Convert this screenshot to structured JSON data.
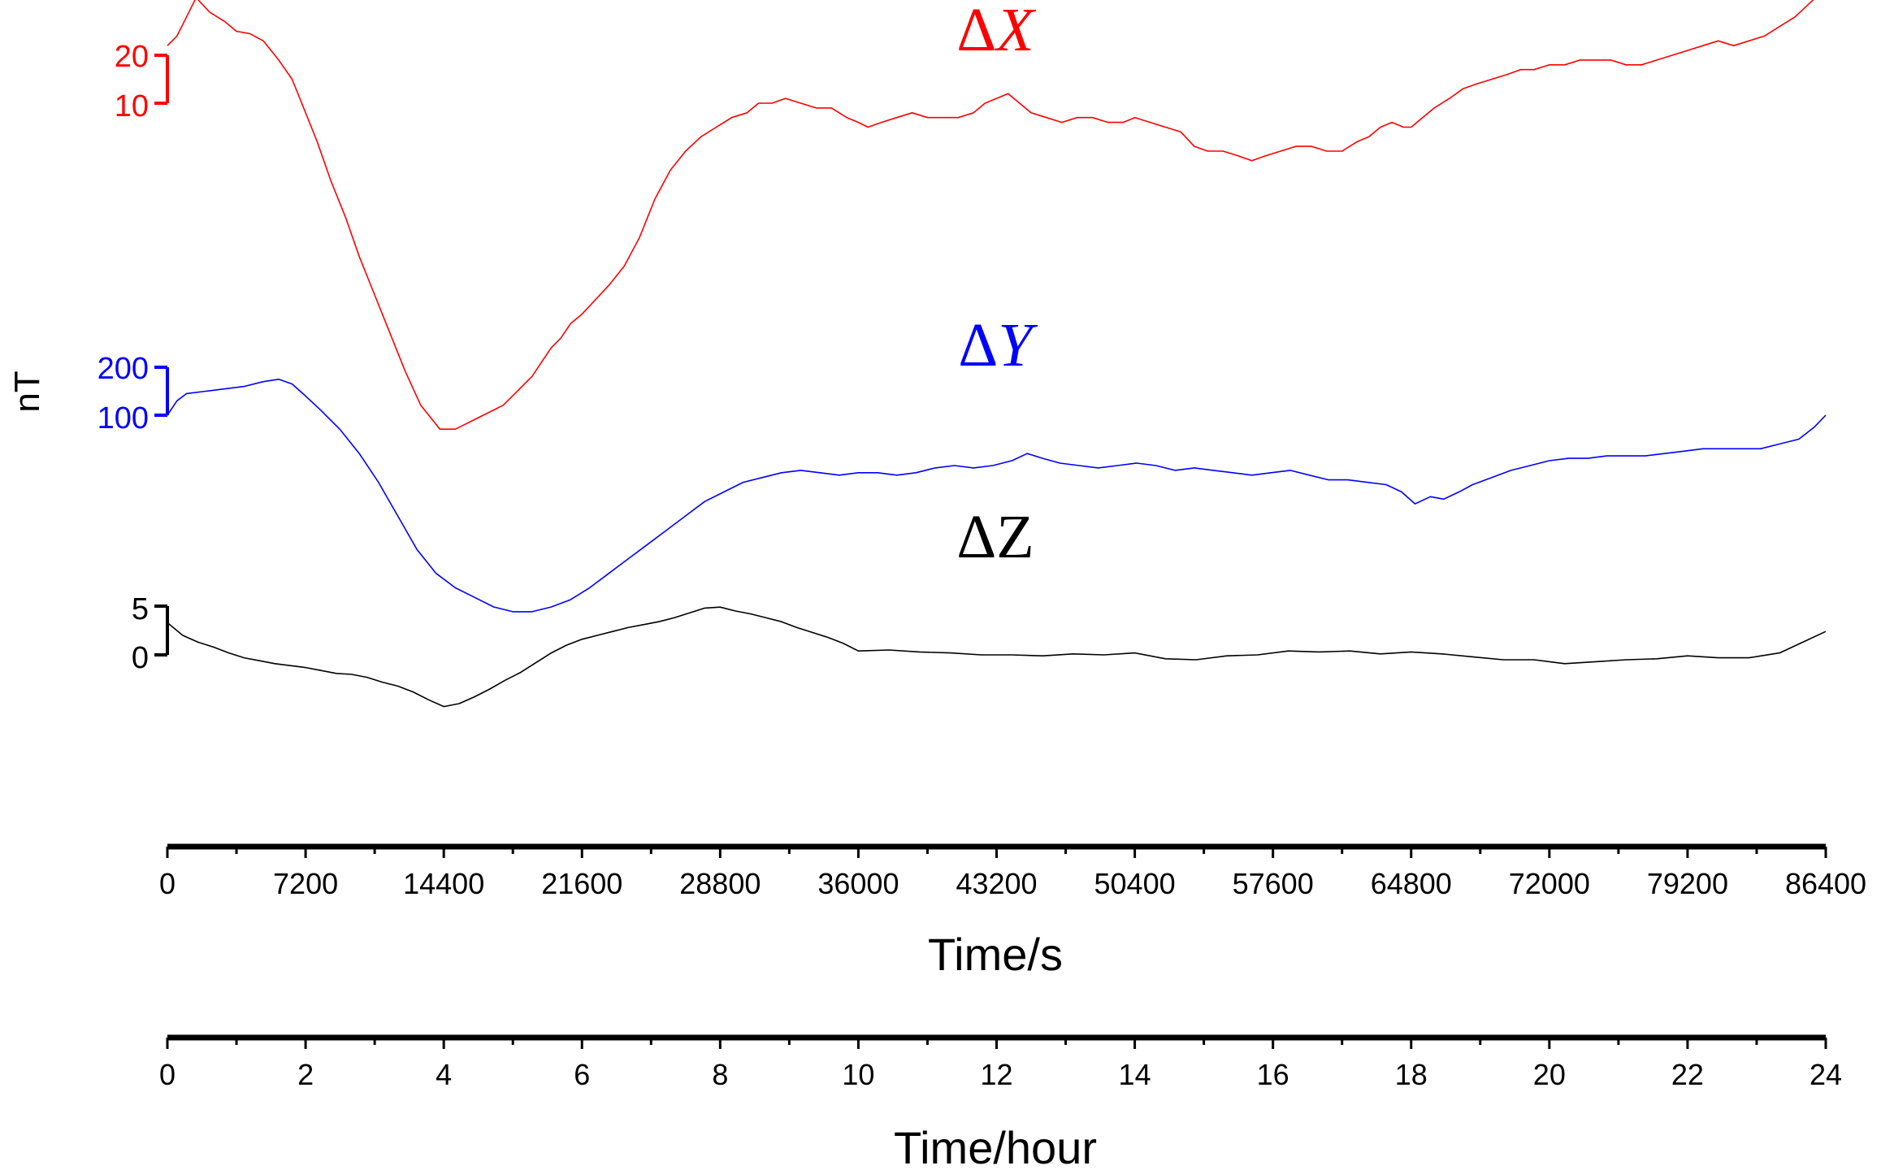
{
  "chart_data": {
    "type": "line",
    "ylabel": "nT",
    "x_unit_label": "Time/s",
    "x_hour_label": "Time/hour",
    "xlim": [
      0,
      86400
    ],
    "x_ticks_seconds": [
      "0",
      "7200",
      "14400",
      "21600",
      "28800",
      "36000",
      "43200",
      "50400",
      "57600",
      "64800",
      "72000",
      "79200",
      "86400"
    ],
    "x_ticks_hours": [
      "0",
      "2",
      "4",
      "6",
      "8",
      "10",
      "12",
      "14",
      "16",
      "18",
      "20",
      "22",
      "24"
    ],
    "grid": false,
    "series": [
      {
        "name": "X",
        "delta_symbol": "Δ",
        "color": "#ff0000",
        "scale_ticks": [
          "20",
          "10"
        ],
        "scale_values": [
          20,
          10
        ],
        "x": [
          0,
          500,
          1000,
          1500,
          2200,
          3000,
          3600,
          4300,
          5000,
          5800,
          6500,
          7200,
          7800,
          8500,
          9300,
          10000,
          10800,
          11600,
          12400,
          13200,
          13800,
          14200,
          14600,
          15000,
          15500,
          16000,
          16500,
          17000,
          17500,
          18000,
          18500,
          19000,
          19500,
          20000,
          20500,
          21000,
          21600,
          22300,
          23000,
          23800,
          24600,
          25400,
          26200,
          27000,
          27800,
          28600,
          29400,
          30200,
          30800,
          31500,
          32200,
          33000,
          33800,
          34600,
          35400,
          36000,
          36500,
          37200,
          38000,
          38800,
          39600,
          40400,
          41200,
          42000,
          42600,
          43200,
          43800,
          44400,
          45000,
          45800,
          46600,
          47400,
          48200,
          49000,
          49800,
          50400,
          51200,
          52000,
          52800,
          53500,
          54200,
          55000,
          55800,
          56500,
          57200,
          58000,
          58800,
          59600,
          60400,
          61200,
          62000,
          62600,
          63200,
          63800,
          64400,
          64800,
          65400,
          66000,
          66800,
          67500,
          68200,
          69000,
          69800,
          70500,
          71200,
          72000,
          72800,
          73600,
          74400,
          75200,
          76000,
          76800,
          77600,
          78400,
          79200,
          80000,
          80800,
          81600,
          82400,
          83200,
          84000,
          84800,
          85600,
          86400
        ],
        "y": [
          22,
          24,
          28,
          32,
          29,
          27,
          25,
          24.5,
          23,
          19,
          15,
          8,
          2,
          -6,
          -14,
          -22,
          -30,
          -38,
          -46,
          -53,
          -56,
          -58,
          -58,
          -58,
          -57,
          -56,
          -55,
          -54,
          -53,
          -51,
          -49,
          -47,
          -44,
          -41,
          -39,
          -36,
          -34,
          -31,
          -28,
          -24,
          -18,
          -10,
          -4,
          0,
          3,
          5,
          7,
          8,
          10,
          10,
          11,
          10,
          9,
          9,
          7,
          6,
          5,
          6,
          7,
          8,
          7,
          7,
          7,
          8,
          10,
          11,
          12,
          10,
          8,
          7,
          6,
          7,
          7,
          6,
          6,
          7,
          6,
          5,
          4,
          1,
          0,
          0,
          -1,
          -2,
          -1,
          0,
          1,
          1,
          0,
          0,
          2,
          3,
          5,
          6,
          5,
          5,
          7,
          9,
          11,
          13,
          14,
          15,
          16,
          17,
          17,
          18,
          18,
          19,
          19,
          19,
          18,
          18,
          19,
          20,
          21,
          22,
          23,
          22,
          23,
          24,
          26,
          28,
          31,
          34
        ]
      },
      {
        "name": "Y",
        "delta_symbol": "Δ",
        "color": "#0000ff",
        "scale_ticks": [
          "200",
          "100"
        ],
        "scale_values": [
          200,
          100
        ],
        "x": [
          0,
          500,
          1000,
          2000,
          3000,
          4000,
          5000,
          5800,
          6500,
          7200,
          8000,
          9000,
          10000,
          11000,
          12000,
          13000,
          14000,
          15000,
          16000,
          17000,
          18000,
          19000,
          20000,
          21000,
          22000,
          23000,
          24000,
          25000,
          26000,
          27000,
          28000,
          29000,
          30000,
          31000,
          32000,
          33000,
          34000,
          35000,
          36000,
          37000,
          38000,
          39000,
          40000,
          41000,
          42000,
          43000,
          44000,
          44800,
          45600,
          46500,
          47500,
          48500,
          49500,
          50500,
          51500,
          52500,
          53500,
          54500,
          55500,
          56500,
          57500,
          58500,
          59500,
          60500,
          61500,
          62500,
          63500,
          64300,
          65000,
          65800,
          66500,
          67300,
          68000,
          69000,
          70000,
          71000,
          72000,
          73000,
          74000,
          75000,
          76000,
          77000,
          78000,
          79000,
          80000,
          81000,
          82000,
          83000,
          84000,
          85000,
          85800,
          86400
        ],
        "y": [
          100,
          130,
          145,
          150,
          155,
          160,
          170,
          175,
          165,
          140,
          110,
          70,
          20,
          -40,
          -110,
          -180,
          -230,
          -260,
          -280,
          -300,
          -310,
          -310,
          -300,
          -285,
          -260,
          -230,
          -200,
          -170,
          -140,
          -110,
          -80,
          -60,
          -40,
          -30,
          -20,
          -15,
          -20,
          -25,
          -20,
          -20,
          -25,
          -20,
          -10,
          -5,
          -10,
          -5,
          5,
          20,
          10,
          0,
          -5,
          -10,
          -5,
          0,
          -5,
          -15,
          -10,
          -15,
          -20,
          -25,
          -20,
          -15,
          -25,
          -35,
          -35,
          -40,
          -45,
          -60,
          -85,
          -70,
          -75,
          -60,
          -45,
          -30,
          -15,
          -5,
          5,
          10,
          10,
          15,
          15,
          15,
          20,
          25,
          30,
          30,
          30,
          30,
          40,
          50,
          75,
          100
        ]
      },
      {
        "name": "Z",
        "delta_symbol": "Δ",
        "color": "#000000",
        "scale_ticks": [
          "5",
          "0"
        ],
        "scale_values": [
          5,
          0
        ],
        "x": [
          0,
          800,
          1600,
          2400,
          3200,
          4000,
          4800,
          5600,
          6400,
          7200,
          8000,
          8800,
          9600,
          10400,
          11200,
          12000,
          12800,
          13600,
          14400,
          15200,
          16000,
          16800,
          17600,
          18400,
          19200,
          20000,
          20800,
          21600,
          22400,
          23200,
          24000,
          24800,
          25600,
          26400,
          27200,
          28000,
          28800,
          29600,
          30400,
          31200,
          32000,
          32800,
          33600,
          34400,
          35200,
          36000,
          37600,
          39200,
          40800,
          42400,
          44000,
          45600,
          47200,
          48800,
          50400,
          52000,
          53600,
          55200,
          56800,
          58400,
          60000,
          61600,
          63200,
          64800,
          66400,
          68000,
          69600,
          71200,
          72800,
          74400,
          76000,
          77600,
          79200,
          80800,
          82400,
          84000,
          85200,
          86400
        ],
        "y": [
          3.3,
          2,
          1.3,
          0.8,
          0.2,
          -0.3,
          -0.6,
          -0.9,
          -1.1,
          -1.3,
          -1.6,
          -1.9,
          -2,
          -2.3,
          -2.8,
          -3.2,
          -3.8,
          -4.6,
          -5.3,
          -5,
          -4.3,
          -3.5,
          -2.6,
          -1.8,
          -0.8,
          0.2,
          1,
          1.6,
          2,
          2.4,
          2.8,
          3.1,
          3.4,
          3.8,
          4.3,
          4.8,
          4.9,
          4.5,
          4.2,
          3.8,
          3.4,
          2.8,
          2.3,
          1.8,
          1.2,
          0.4,
          0.5,
          0.3,
          0.2,
          0,
          0,
          -0.1,
          0.1,
          0,
          0.2,
          -0.4,
          -0.5,
          -0.1,
          0,
          0.4,
          0.3,
          0.4,
          0.1,
          0.3,
          0.1,
          -0.2,
          -0.5,
          -0.5,
          -0.9,
          -0.7,
          -0.5,
          -0.4,
          -0.1,
          -0.3,
          -0.3,
          0.2,
          1.3,
          2.4
        ]
      }
    ]
  }
}
